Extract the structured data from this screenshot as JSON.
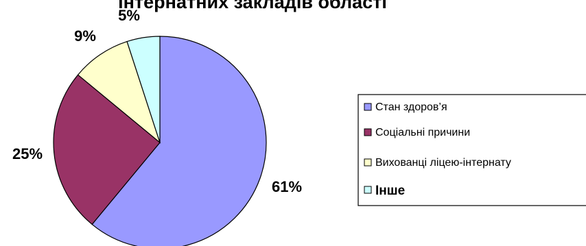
{
  "chart_data": {
    "type": "pie",
    "title": "інтернатних закладів області",
    "categories": [
      "Стан здоров’я",
      "Соціальні причини",
      "Вихованці ліцею-інтернату",
      "Інше"
    ],
    "values": [
      61,
      25,
      9,
      5
    ],
    "value_labels": [
      "61%",
      "25%",
      "9%",
      "5%"
    ],
    "colors": [
      "#9999ff",
      "#993366",
      "#ffffcc",
      "#ccffff"
    ],
    "legend_position": "right",
    "start_angle": "12 o'clock",
    "direction": "clockwise"
  }
}
